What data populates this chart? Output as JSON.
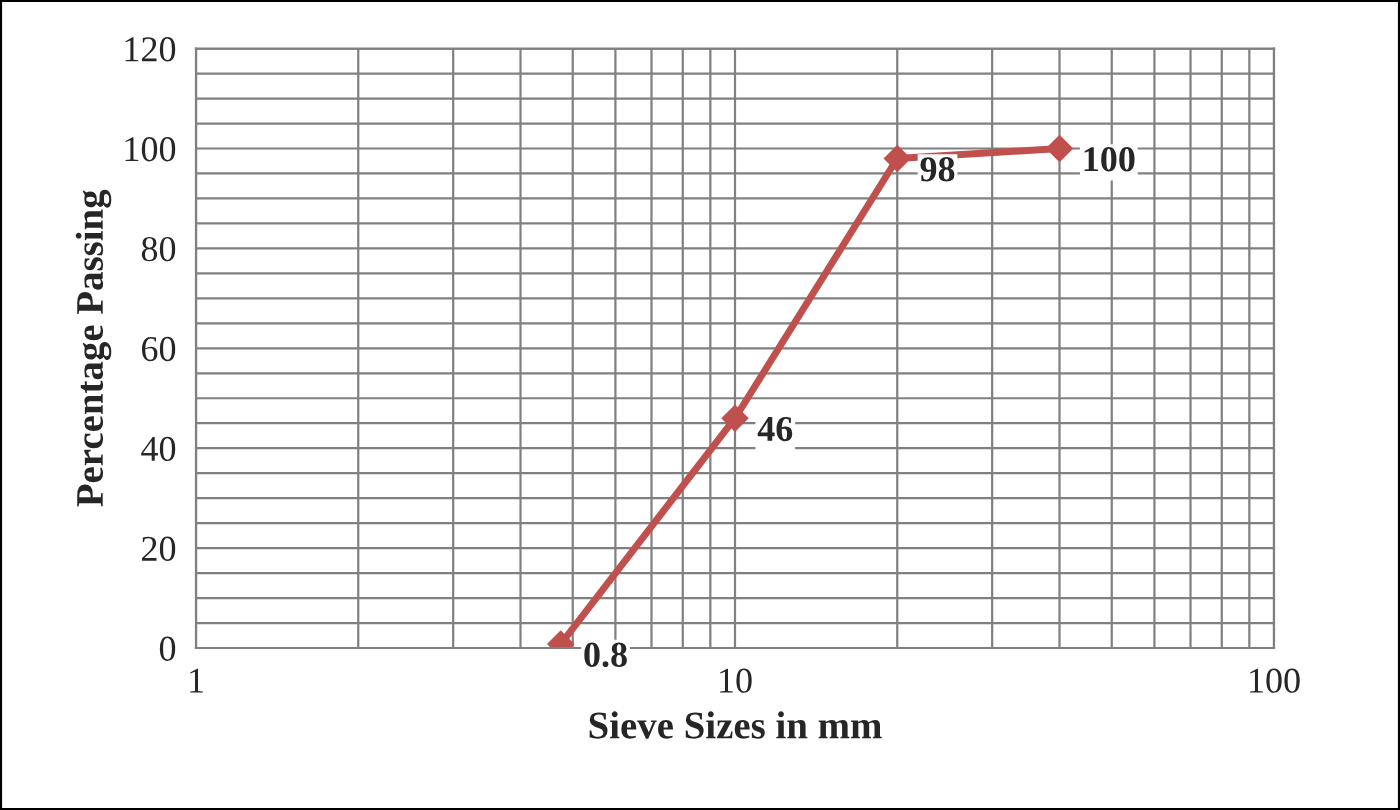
{
  "chart_data": {
    "type": "line",
    "xlabel": "Sieve Sizes in mm",
    "ylabel": "Percentage Passing",
    "x": [
      4.75,
      10,
      20,
      40
    ],
    "series": [
      {
        "color": "#c0504d",
        "values": [
          0.8,
          46,
          98,
          100
        ]
      }
    ],
    "xlim": [
      1,
      100
    ],
    "xticks": [
      1,
      10,
      100
    ],
    "ylim": [
      0,
      120
    ],
    "yticks": [
      0,
      20,
      40,
      60,
      80,
      100,
      120
    ],
    "log": "x",
    "grid": true,
    "marker": "diamond",
    "line_style": "solid",
    "data_labels": true
  }
}
